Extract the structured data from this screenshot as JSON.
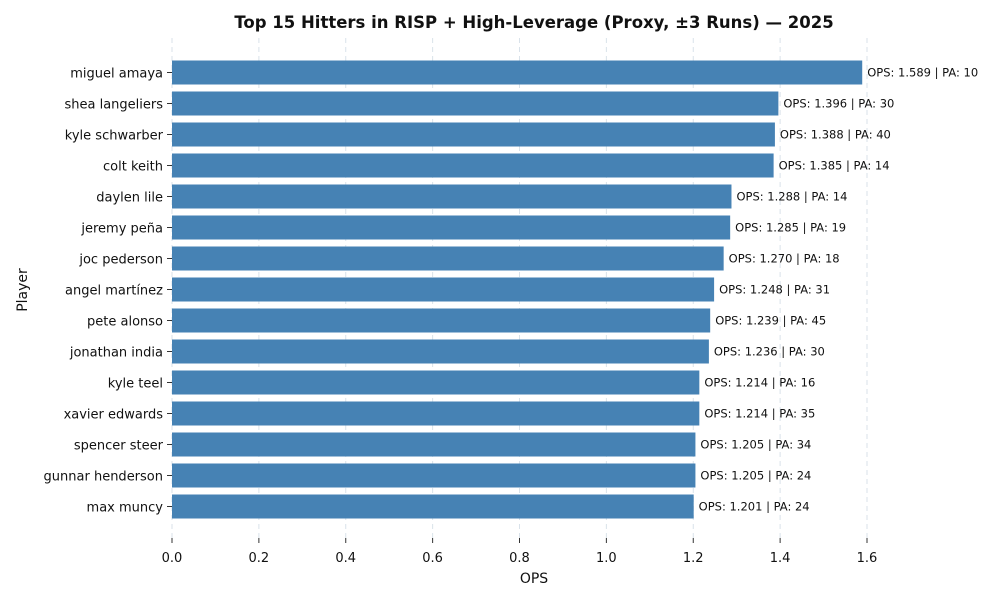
{
  "chart_data": {
    "type": "bar",
    "orientation": "horizontal",
    "title": "Top 15 Hitters in RISP + High-Leverage (Proxy, ±3 Runs) — 2025",
    "xlabel": "OPS",
    "ylabel": "Player",
    "xlim": [
      0,
      1.6
    ],
    "xticks": [
      "0.0",
      "0.2",
      "0.4",
      "0.6",
      "0.8",
      "1.0",
      "1.2",
      "1.4",
      "1.6"
    ],
    "grid": "vertical dashed",
    "bar_color": "#4682b4",
    "categories": [
      "miguel amaya",
      "shea langeliers",
      "kyle schwarber",
      "colt keith",
      "daylen lile",
      "jeremy peña",
      "joc pederson",
      "angel martínez",
      "pete alonso",
      "jonathan india",
      "kyle teel",
      "xavier edwards",
      "spencer steer",
      "gunnar henderson",
      "max muncy"
    ],
    "values": [
      1.589,
      1.396,
      1.388,
      1.385,
      1.288,
      1.285,
      1.27,
      1.248,
      1.239,
      1.236,
      1.214,
      1.214,
      1.205,
      1.205,
      1.201
    ],
    "pa": [
      10,
      30,
      40,
      14,
      14,
      19,
      18,
      31,
      45,
      30,
      16,
      35,
      34,
      24,
      24
    ],
    "data_labels": [
      "OPS: 1.589 | PA: 10",
      "OPS: 1.396 | PA: 30",
      "OPS: 1.388 | PA: 40",
      "OPS: 1.385 | PA: 14",
      "OPS: 1.288 | PA: 14",
      "OPS: 1.285 | PA: 19",
      "OPS: 1.270 | PA: 18",
      "OPS: 1.248 | PA: 31",
      "OPS: 1.239 | PA: 45",
      "OPS: 1.236 | PA: 30",
      "OPS: 1.214 | PA: 16",
      "OPS: 1.214 | PA: 35",
      "OPS: 1.205 | PA: 34",
      "OPS: 1.205 | PA: 24",
      "OPS: 1.201 | PA: 24"
    ]
  }
}
